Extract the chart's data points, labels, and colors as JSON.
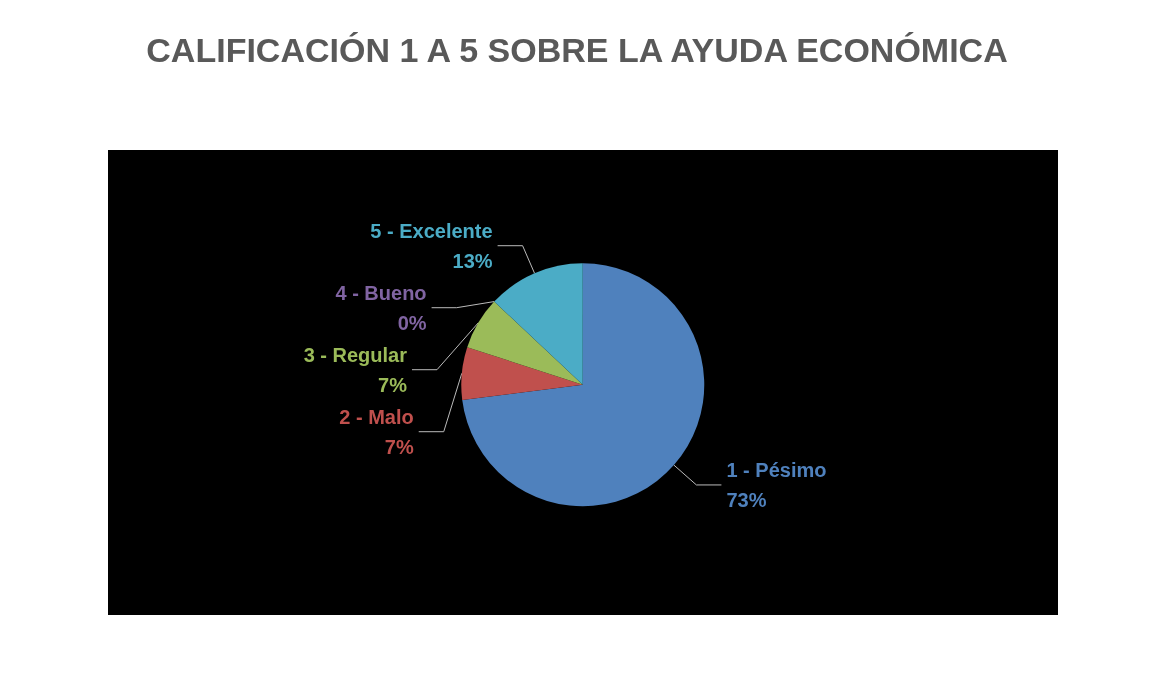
{
  "chart_data": {
    "type": "pie",
    "title": "CALIFICACIÓN 1 A 5 SOBRE LA AYUDA ECONÓMICA",
    "categories": [
      "1 - Pésimo",
      "2 - Malo",
      "3 - Regular",
      "4 - Bueno",
      "5 - Excelente"
    ],
    "values": [
      73,
      7,
      7,
      0,
      13
    ],
    "value_labels": [
      "73%",
      "7%",
      "7%",
      "0%",
      "13%"
    ],
    "colors": [
      "#4f81bd",
      "#c0504d",
      "#9bbb59",
      "#8064a2",
      "#4bacc6"
    ]
  }
}
